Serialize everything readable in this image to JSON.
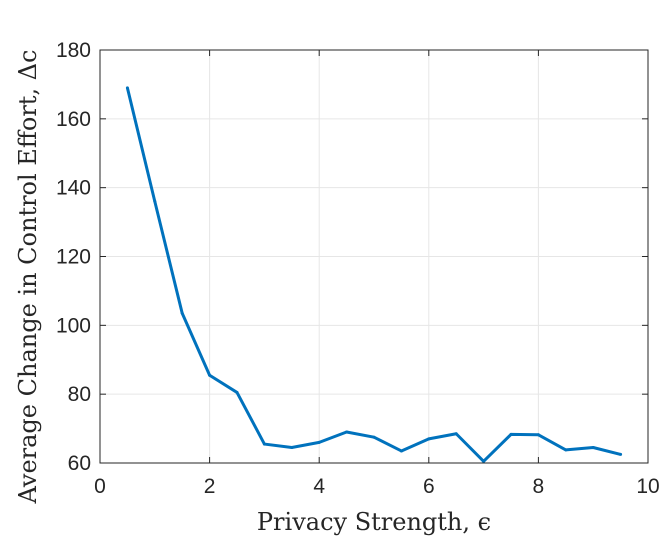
{
  "chart_data": {
    "type": "line",
    "title": "",
    "xlabel": "Privacy Strength, ϵ",
    "ylabel": "Average Change in Control Effort, Δc",
    "xlim": [
      0,
      10
    ],
    "ylim": [
      60,
      180
    ],
    "xticks": [
      0,
      2,
      4,
      6,
      8,
      10
    ],
    "yticks": [
      60,
      80,
      100,
      120,
      140,
      160,
      180
    ],
    "grid": true,
    "series": [
      {
        "color": "#0072bd",
        "x": [
          0.5,
          1.0,
          1.5,
          2.0,
          2.5,
          3.0,
          3.5,
          4.0,
          4.5,
          5.0,
          5.5,
          6.0,
          6.5,
          7.0,
          7.5,
          8.0,
          8.5,
          9.0,
          9.5
        ],
        "y": [
          169,
          136,
          103.5,
          85.5,
          80.5,
          65.5,
          64.5,
          66,
          69,
          67.5,
          63.5,
          67,
          68.5,
          60.5,
          68.3,
          68.2,
          63.8,
          64.5,
          62.5
        ]
      }
    ]
  }
}
